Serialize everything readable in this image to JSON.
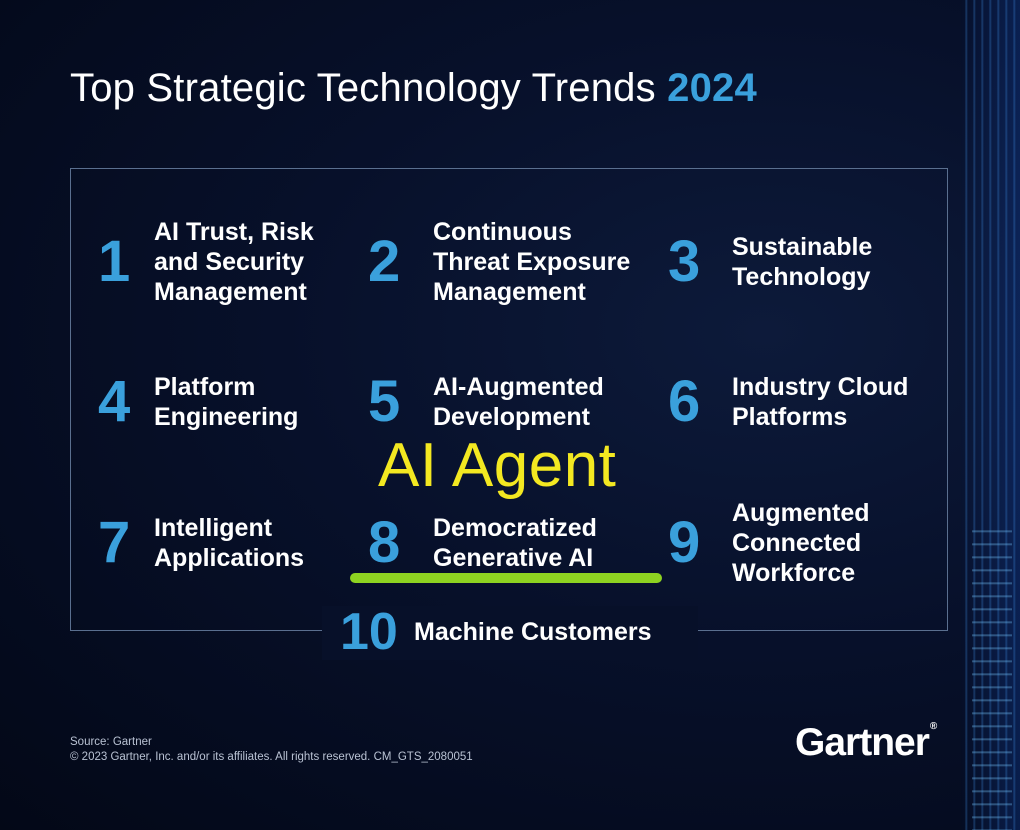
{
  "title": {
    "text": "Top Strategic Technology Trends",
    "year": "2024"
  },
  "trends": [
    {
      "number": "1",
      "label": "AI Trust, Risk\nand Security\nManagement"
    },
    {
      "number": "2",
      "label": "Continuous\nThreat Exposure\nManagement"
    },
    {
      "number": "3",
      "label": "Sustainable\nTechnology"
    },
    {
      "number": "4",
      "label": "Platform\nEngineering"
    },
    {
      "number": "5",
      "label": "AI-Augmented\nDevelopment"
    },
    {
      "number": "6",
      "label": "Industry Cloud\nPlatforms"
    },
    {
      "number": "7",
      "label": "Intelligent\nApplications"
    },
    {
      "number": "8",
      "label": "Democratized\nGenerative AI"
    },
    {
      "number": "9",
      "label": "Augmented\nConnected\nWorkforce"
    },
    {
      "number": "10",
      "label": "Machine Customers"
    }
  ],
  "annotation": {
    "text": "AI Agent",
    "color": "#f3e821",
    "underline_color": "#8ed321"
  },
  "footer": {
    "source": "Source: Gartner",
    "copyright": "© 2023 Gartner, Inc. and/or its affiliates. All rights reserved. CM_GTS_2080051"
  },
  "logo": {
    "text": "Gartner",
    "mark": "®"
  },
  "colors": {
    "accent": "#3aa0dc",
    "background": "#07102a"
  }
}
